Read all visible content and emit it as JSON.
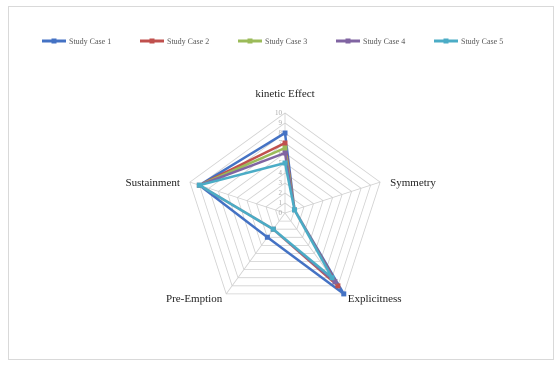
{
  "chart_data": {
    "type": "radar",
    "axes": [
      "kinetic Effect",
      "Symmetry",
      "Explicitness",
      "Pre-Emption",
      "Sustainment"
    ],
    "rlim": [
      0,
      10
    ],
    "ticks": [
      0,
      1,
      2,
      3,
      4,
      5,
      6,
      7,
      8,
      9,
      10
    ],
    "grid": true,
    "legend_position": "top",
    "series": [
      {
        "name": "Study Case 1",
        "color": "#4472c4",
        "values": [
          8,
          1,
          10,
          3,
          9
        ]
      },
      {
        "name": "Study Case 2",
        "color": "#c0504d",
        "values": [
          7,
          1,
          9,
          2,
          9
        ]
      },
      {
        "name": "Study Case 3",
        "color": "#9bbb59",
        "values": [
          6.5,
          1,
          8.5,
          2,
          9
        ]
      },
      {
        "name": "Study Case 4",
        "color": "#8064a2",
        "values": [
          6,
          1,
          8.5,
          2,
          9
        ]
      },
      {
        "name": "Study Case 5",
        "color": "#4bacc6",
        "values": [
          5,
          1,
          8,
          2,
          9
        ]
      }
    ]
  }
}
